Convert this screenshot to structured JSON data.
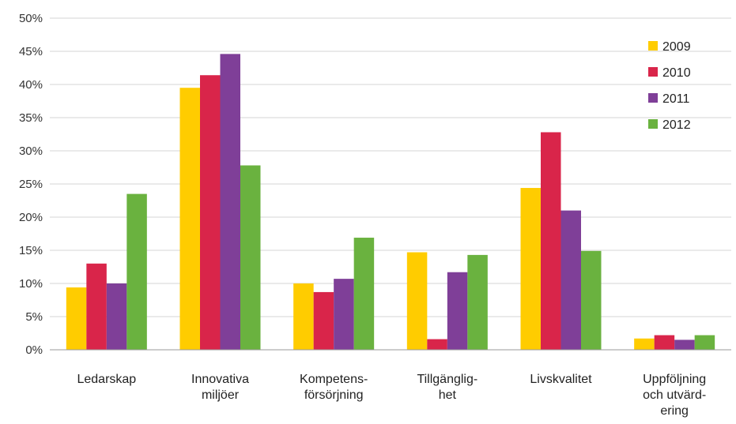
{
  "chart_data": {
    "type": "bar",
    "title": "",
    "xlabel": "",
    "ylabel": "",
    "ylim": [
      0,
      50
    ],
    "y_ticks": [
      0,
      5,
      10,
      15,
      20,
      25,
      30,
      35,
      40,
      45,
      50
    ],
    "y_tick_suffix": "%",
    "grid": "horizontal",
    "legend_position": "top-right",
    "categories": [
      [
        "Ledarskap"
      ],
      [
        "Innovativa",
        "miljöer"
      ],
      [
        "Kompetens-",
        "försörjning"
      ],
      [
        "Tillgänglig-",
        "het"
      ],
      [
        "Livskvalitet"
      ],
      [
        "Uppföljning",
        "och utvärd-",
        "ering"
      ]
    ],
    "series": [
      {
        "name": "2009",
        "color": "#FFCC00",
        "values": [
          9.4,
          39.5,
          10.0,
          14.7,
          24.4,
          1.7
        ]
      },
      {
        "name": "2010",
        "color": "#D9254A",
        "values": [
          13.0,
          41.4,
          8.7,
          1.6,
          32.8,
          2.2
        ]
      },
      {
        "name": "2011",
        "color": "#7F3F98",
        "values": [
          10.0,
          44.6,
          10.7,
          11.7,
          21.0,
          1.5
        ]
      },
      {
        "name": "2012",
        "color": "#6AB23F",
        "values": [
          23.5,
          27.8,
          16.9,
          14.3,
          14.9,
          2.2
        ]
      }
    ]
  }
}
